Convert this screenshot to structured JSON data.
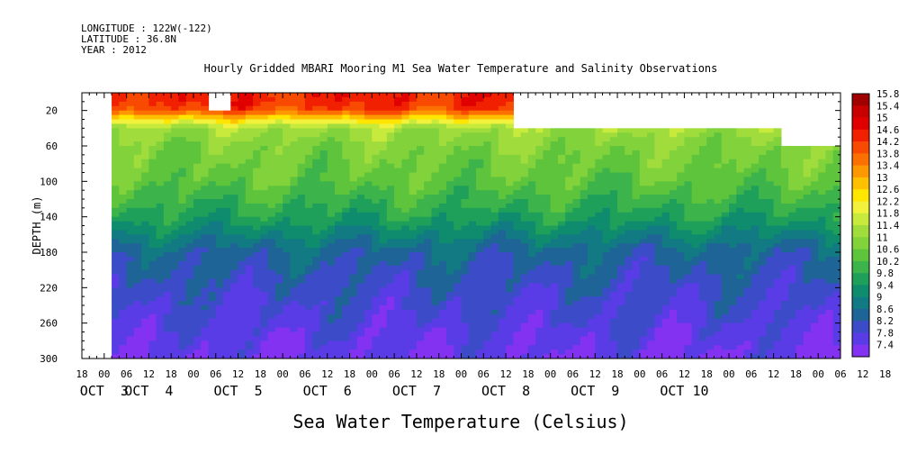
{
  "meta": {
    "longitude": "LONGITUDE : 122W(-122)",
    "latitude": "LATITUDE : 36.8N",
    "year": "YEAR : 2012"
  },
  "chart_data": {
    "type": "heatmap",
    "title": "Hourly Gridded MBARI Mooring M1 Sea Water Temperature and Salinity Observations",
    "xlabel": "Sea Water Temperature (Celsius)",
    "ylabel": "DEPTH (m)",
    "x_range_hours": [
      0,
      204
    ],
    "x_axis_start": "OCT 2 18:00",
    "ylim": [
      0,
      300
    ],
    "y_inverted": true,
    "y_ticks": [
      20,
      60,
      100,
      140,
      180,
      220,
      260,
      300
    ],
    "x_hour_ticks": [
      "18",
      "00",
      "06",
      "12",
      "18",
      "00",
      "06",
      "12",
      "18",
      "00",
      "06",
      "12",
      "18",
      "00",
      "06",
      "12",
      "18",
      "00",
      "06",
      "12",
      "18",
      "00",
      "06",
      "12",
      "18",
      "00",
      "06",
      "12",
      "18",
      "00",
      "06",
      "12",
      "18",
      "00",
      "06",
      "12",
      "18"
    ],
    "x_day_labels": [
      {
        "label": "OCT  3",
        "hour": 6
      },
      {
        "label": "OCT  4",
        "hour": 18
      },
      {
        "label": "OCT  5",
        "hour": 42
      },
      {
        "label": "OCT  6",
        "hour": 66
      },
      {
        "label": "OCT  7",
        "hour": 90
      },
      {
        "label": "OCT  8",
        "hour": 114
      },
      {
        "label": "OCT  9",
        "hour": 138
      },
      {
        "label": "OCT 10",
        "hour": 162
      }
    ],
    "colorbar": {
      "levels": [
        "15.8",
        "15.4",
        "15",
        "14.6",
        "14.2",
        "13.8",
        "13.4",
        "13",
        "12.6",
        "12.2",
        "11.8",
        "11.4",
        "11",
        "10.6",
        "10.2",
        "9.8",
        "9.4",
        "9",
        "8.6",
        "8.2",
        "7.8",
        "7.4"
      ],
      "colors": [
        "#a00000",
        "#c80000",
        "#e00000",
        "#f02000",
        "#f84a00",
        "#fb7000",
        "#fd9800",
        "#ffc000",
        "#ffe600",
        "#f2f23c",
        "#c8ea3c",
        "#a0dc3c",
        "#82d23c",
        "#5ec43c",
        "#3cb44b",
        "#1fa05a",
        "#0f8c6e",
        "#127a82",
        "#1e6496",
        "#3c4cc8",
        "#5a3ce6",
        "#8232f0"
      ]
    },
    "data_coverage": {
      "data_start_hour": 8,
      "gaps": [
        {
          "from_hour": 34,
          "to_hour": 40,
          "depth_from": 0,
          "depth_to": 20
        },
        {
          "from_hour": 116,
          "to_hour": 204,
          "depth_from": 0,
          "depth_to": 40
        },
        {
          "from_hour": 188,
          "to_hour": 204,
          "depth_from": 0,
          "depth_to": 60
        }
      ]
    },
    "vertical_profile": [
      {
        "depth": 10,
        "temp": 14.6
      },
      {
        "depth": 20,
        "temp": 14.2
      },
      {
        "depth": 30,
        "temp": 12.6
      },
      {
        "depth": 40,
        "temp": 11.4
      },
      {
        "depth": 60,
        "temp": 11.0
      },
      {
        "depth": 100,
        "temp": 10.6
      },
      {
        "depth": 140,
        "temp": 9.8
      },
      {
        "depth": 180,
        "temp": 8.6
      },
      {
        "depth": 220,
        "temp": 8.2
      },
      {
        "depth": 260,
        "temp": 7.9
      },
      {
        "depth": 300,
        "temp": 7.6
      }
    ]
  }
}
